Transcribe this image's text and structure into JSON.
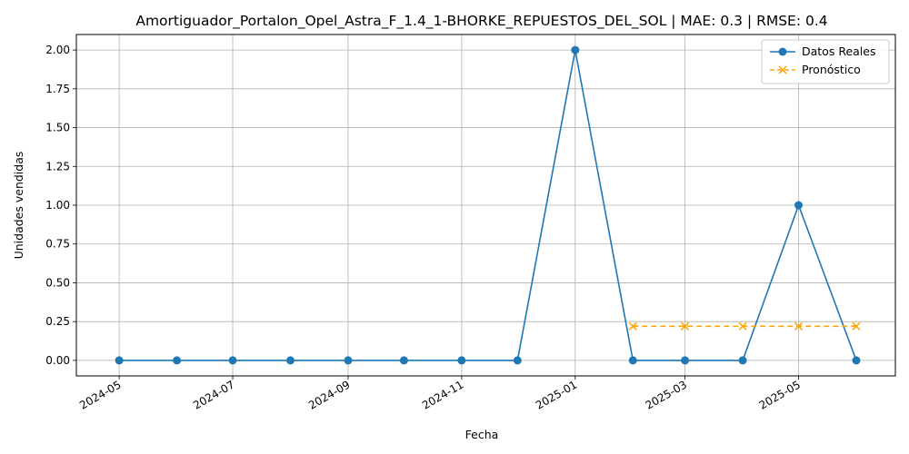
{
  "chart_data": {
    "type": "line",
    "title": "Amortiguador_Portalon_Opel_Astra_F_1.4_1-BHORKE_REPUESTOS_DEL_SOL | MAE: 0.3 | RMSE: 0.4",
    "xlabel": "Fecha",
    "ylabel": "Unidades vendidas",
    "xlim": [
      "2024-04-08",
      "2025-06-22"
    ],
    "ylim": [
      -0.1,
      2.1
    ],
    "x_ticks": [
      "2024-05",
      "2024-07",
      "2024-09",
      "2024-11",
      "2025-01",
      "2025-03",
      "2025-05"
    ],
    "y_ticks": [
      "0.00",
      "0.25",
      "0.50",
      "0.75",
      "1.00",
      "1.25",
      "1.50",
      "1.75",
      "2.00"
    ],
    "grid": true,
    "legend_position": "top-right",
    "series": [
      {
        "name": "Datos Reales",
        "color": "#1f77b4",
        "marker": "circle",
        "linestyle": "solid",
        "x": [
          "2024-05-01",
          "2024-06-01",
          "2024-07-01",
          "2024-08-01",
          "2024-09-01",
          "2024-10-01",
          "2024-11-01",
          "2024-12-01",
          "2025-01-01",
          "2025-02-01",
          "2025-03-01",
          "2025-04-01",
          "2025-05-01",
          "2025-06-01"
        ],
        "values": [
          0,
          0,
          0,
          0,
          0,
          0,
          0,
          0,
          2,
          0,
          0,
          0,
          1,
          0
        ]
      },
      {
        "name": "Pronóstico",
        "color": "#ffa500",
        "marker": "x",
        "linestyle": "dashed",
        "x": [
          "2025-02-01",
          "2025-03-01",
          "2025-04-01",
          "2025-05-01",
          "2025-06-01"
        ],
        "values": [
          0.22,
          0.22,
          0.22,
          0.22,
          0.22
        ]
      }
    ]
  }
}
